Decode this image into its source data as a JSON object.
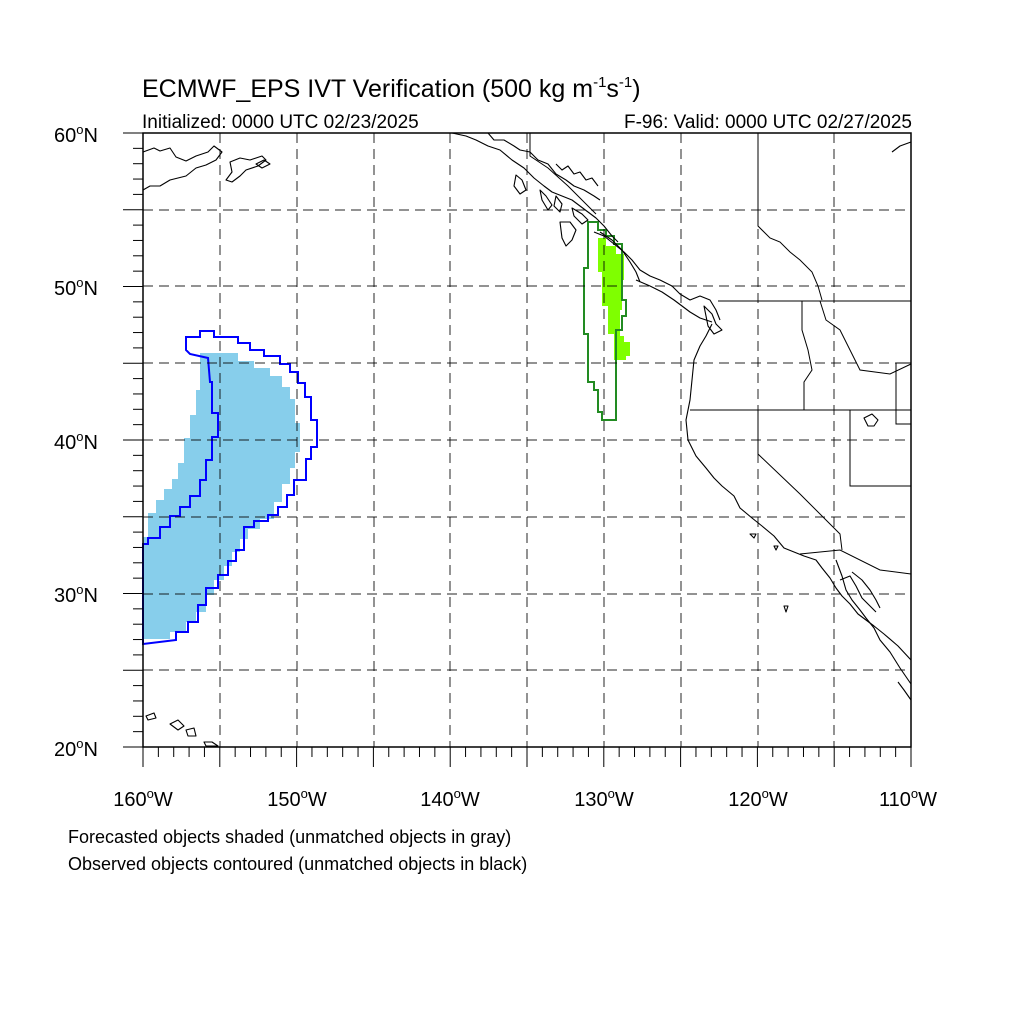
{
  "header": {
    "title_main": "ECMWF_EPS IVT Verification (500 kg m",
    "title_sup1": "-1",
    "title_mid": "s",
    "title_sup2": "-1",
    "title_end": ")",
    "initialized": "Initialized: 0000 UTC 02/23/2025",
    "valid": "F-96: Valid: 0000 UTC 02/27/2025"
  },
  "axes": {
    "lat_labels": [
      "60",
      "50",
      "40",
      "30",
      "20"
    ],
    "lat_suffix": "N",
    "lon_labels": [
      "160",
      "150",
      "140",
      "130",
      "120",
      "110"
    ],
    "lon_suffix": "W",
    "degree_symbol": "o"
  },
  "map": {
    "lon_range": [
      -160,
      -110
    ],
    "lat_range": [
      20,
      60
    ],
    "grid_lines": "dashed every 5 degrees",
    "colors": {
      "forecast_object_1": "#87ceeb",
      "observed_object_1": "#0000ff",
      "forecast_object_2": "#7fff00",
      "observed_object_2": "#228b22",
      "coastline": "#000000"
    }
  },
  "caption": {
    "line1": "Forecasted objects shaded (unmatched objects in gray)",
    "line2": "Observed objects contoured (unmatched objects in black)"
  }
}
